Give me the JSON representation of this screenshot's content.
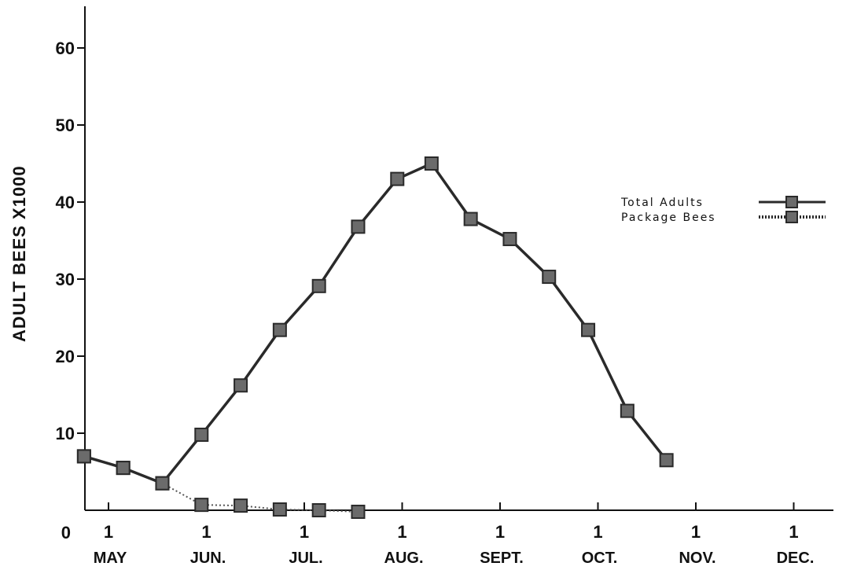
{
  "chart_data": {
    "type": "line",
    "title": "",
    "ylabel": "ADULT BEES X1000",
    "ylim": [
      0,
      65
    ],
    "y_ticks": [
      "0",
      "10",
      "20",
      "30",
      "40",
      "50",
      "60"
    ],
    "x_ticks": [
      {
        "day": "1",
        "month": "MAY"
      },
      {
        "day": "1",
        "month": "JUN."
      },
      {
        "day": "1",
        "month": "JUL."
      },
      {
        "day": "1",
        "month": "AUG."
      },
      {
        "day": "1",
        "month": "SEPT."
      },
      {
        "day": "1",
        "month": "OCT."
      },
      {
        "day": "1",
        "month": "NOV."
      },
      {
        "day": "1",
        "month": "DEC."
      }
    ],
    "x_note": "x values are months after May 1",
    "legend_position": "right",
    "grid": false,
    "series": [
      {
        "name": "Total Adults",
        "style": "solid",
        "points": [
          {
            "x": -0.25,
            "y": 7
          },
          {
            "x": 0.15,
            "y": 5.5
          },
          {
            "x": 0.55,
            "y": 3.5
          },
          {
            "x": 0.95,
            "y": 9.8
          },
          {
            "x": 1.35,
            "y": 16.2
          },
          {
            "x": 1.75,
            "y": 23.4
          },
          {
            "x": 2.15,
            "y": 29.1
          },
          {
            "x": 2.55,
            "y": 36.8
          },
          {
            "x": 2.95,
            "y": 43
          },
          {
            "x": 3.3,
            "y": 45
          },
          {
            "x": 3.7,
            "y": 37.8
          },
          {
            "x": 4.1,
            "y": 35.2
          },
          {
            "x": 4.5,
            "y": 30.3
          },
          {
            "x": 4.9,
            "y": 23.4
          },
          {
            "x": 5.3,
            "y": 12.9
          },
          {
            "x": 5.7,
            "y": 6.5
          }
        ]
      },
      {
        "name": "Package Bees",
        "style": "dotted",
        "points": [
          {
            "x": -0.25,
            "y": 7
          },
          {
            "x": 0.15,
            "y": 5.5
          },
          {
            "x": 0.55,
            "y": 3.5
          },
          {
            "x": 0.95,
            "y": 0.7
          },
          {
            "x": 1.35,
            "y": 0.6
          },
          {
            "x": 1.75,
            "y": 0.1
          },
          {
            "x": 2.15,
            "y": 0
          },
          {
            "x": 2.55,
            "y": -0.2
          }
        ]
      }
    ],
    "colors": {
      "line": "#2a2a2a",
      "marker_fill": "#6b6b6b",
      "marker_stroke": "#2a2a2a",
      "axis": "#111111"
    }
  }
}
